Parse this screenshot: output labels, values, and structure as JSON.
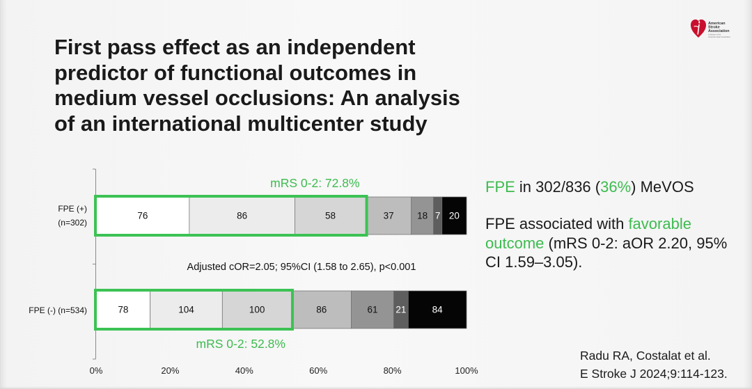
{
  "slide": {
    "background": "#f7f7f7",
    "text_color": "#1a1a1a",
    "accent_color": "#3dbb4f"
  },
  "logo": {
    "icon": "heart-torch-icon",
    "color": "#c8102e",
    "wordmark": [
      "American",
      "Stroke",
      "Association"
    ],
    "tagline": [
      "A division of the",
      "American Heart Association"
    ]
  },
  "title_lines": [
    "First pass effect as an independent",
    "predictor of functional outcomes in",
    "medium vessel occlusions: An analysis",
    "of an international multicenter study"
  ],
  "chart_data": {
    "type": "bar",
    "horizontal": true,
    "stacked": true,
    "normalized": true,
    "bars": [
      {
        "category": [
          "FPE (+)",
          "(n=302)"
        ],
        "values": [
          76,
          86,
          58,
          37,
          18,
          7,
          20
        ],
        "highlight_label": "mRS 0-2: 72.8%"
      },
      {
        "category": [
          "FPE (-) (n=534)"
        ],
        "values": [
          78,
          104,
          100,
          86,
          61,
          21,
          84
        ],
        "highlight_label": "mRS 0-2: 52.8%"
      }
    ],
    "segment_colors": [
      "#ffffff",
      "#ececec",
      "#d6d6d6",
      "#bdbdbd",
      "#949494",
      "#5e5e5e",
      "#050505"
    ],
    "segment_label_colors": [
      "#111111",
      "#111111",
      "#111111",
      "#111111",
      "#111111",
      "#ffffff",
      "#ffffff"
    ],
    "highlight": {
      "highlighted_segments": 3,
      "color": "#3cc254",
      "label_color": "#3dbb4f"
    },
    "annotation": "Adjusted cOR=2.05; 95%CI (1.58 to 2.65), p<0.001",
    "xlim": [
      0,
      100
    ],
    "x_ticks": [
      0,
      20,
      40,
      60,
      80,
      100
    ],
    "x_tick_labels": [
      "0%",
      "20%",
      "40%",
      "60%",
      "80%",
      "100%"
    ],
    "grid": false,
    "legend": false
  },
  "summary": {
    "rate": {
      "term": "FPE",
      "text": " in 302/836 (",
      "percent": "36%",
      "suffix": ") MeVOS"
    },
    "association": {
      "prefix": "FPE associated with ",
      "highlight": "favorable outcome",
      "suffix": " (mRS 0-2: aOR 2.20, 95% CI 1.59–3.05)."
    }
  },
  "citation": {
    "authors": "Radu RA, Costalat et al.",
    "journal": "E Stroke J 2024;9:114-123."
  }
}
